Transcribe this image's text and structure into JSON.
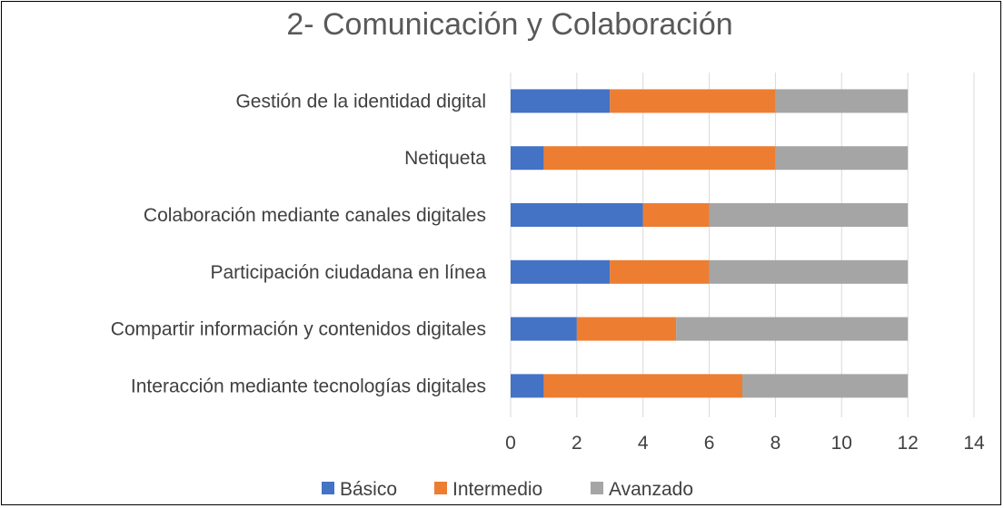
{
  "chart_data": {
    "type": "bar",
    "orientation": "horizontal",
    "stacked": true,
    "title": "2- Comunicación y Colaboración",
    "xlabel": "",
    "ylabel": "",
    "categories": [
      "Gestión de la identidad digital",
      "Netiqueta",
      "Colaboración mediante canales digitales",
      "Participación ciudadana en línea",
      "Compartir información y contenidos digitales",
      "Interacción mediante tecnologías digitales"
    ],
    "series": [
      {
        "name": "Básico",
        "color": "#4472C4",
        "values": [
          3,
          1,
          4,
          3,
          2,
          1
        ]
      },
      {
        "name": "Intermedio",
        "color": "#ED7D31",
        "values": [
          5,
          7,
          2,
          3,
          3,
          6
        ]
      },
      {
        "name": "Avanzado",
        "color": "#A5A5A5",
        "values": [
          4,
          4,
          6,
          6,
          7,
          5
        ]
      }
    ],
    "xlim": [
      0,
      14
    ],
    "xticks": [
      0,
      2,
      4,
      6,
      8,
      10,
      12,
      14
    ],
    "grid": "vertical",
    "legend": "bottom"
  }
}
